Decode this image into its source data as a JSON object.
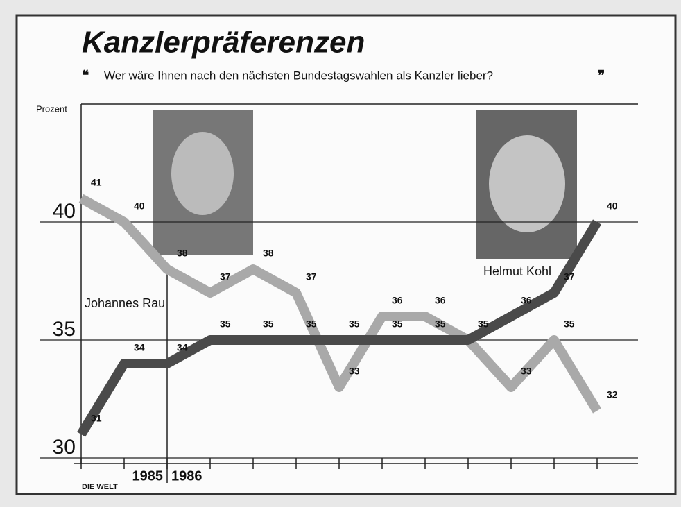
{
  "chart_data": {
    "type": "line",
    "title": "Kanzlerpräferenzen",
    "subtitle": "Wer wäre Ihnen nach den nächsten Bundestagswahlen als Kanzler lieber?",
    "y_label": "Prozent",
    "year_labels": [
      "1985",
      "1986"
    ],
    "categories": [
      null,
      null,
      null,
      null,
      null,
      null,
      null,
      null,
      null,
      null,
      null,
      null,
      null
    ],
    "series": [
      {
        "name": "Johannes Rau",
        "color": "#a9a9a9",
        "values": [
          41,
          40,
          38,
          37,
          38,
          37,
          33,
          36,
          36,
          35,
          33,
          35,
          32
        ]
      },
      {
        "name": "Helmut Kohl",
        "color": "#4a4a4a",
        "values": [
          31,
          34,
          34,
          35,
          35,
          35,
          35,
          35,
          35,
          35,
          36,
          37,
          40
        ]
      }
    ],
    "ylim": [
      30,
      45
    ],
    "yticks": [
      30,
      35,
      40
    ],
    "grid": true,
    "source": "DIE WELT"
  }
}
